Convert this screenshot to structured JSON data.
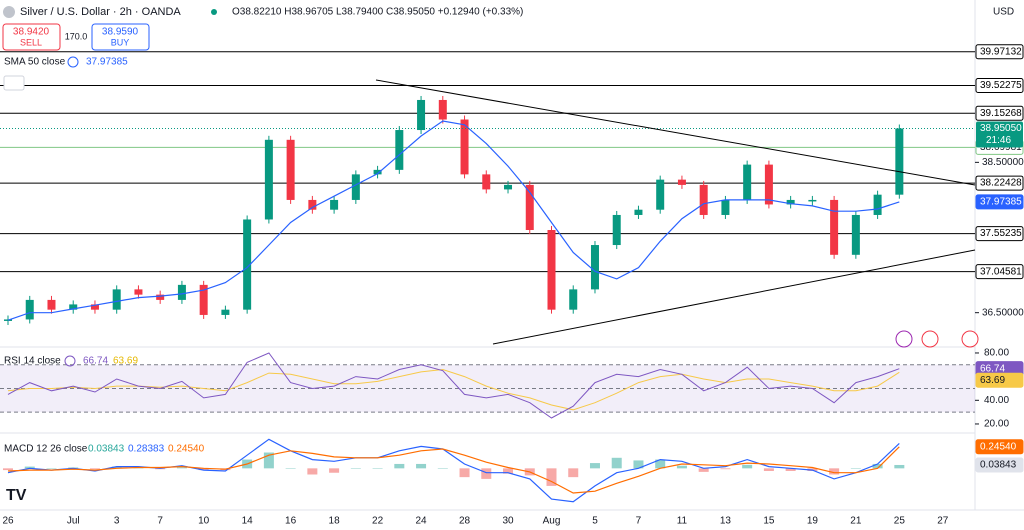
{
  "header": {
    "title": "Silver / U.S. Dollar · 2h · OANDA",
    "ohlc": "O38.82210 H38.96705 L38.79400 C38.95050 +0.12940 (+0.33%)",
    "sell_price": "38.9420",
    "sell": "SELL",
    "spread": "170.0",
    "buy_price": "38.9590",
    "buy": "BUY",
    "currency": "USD"
  },
  "chart_data": [
    {
      "type": "candlestick",
      "legend": "SMA 50 close",
      "categories": [
        "26",
        null,
        null,
        "Jul",
        null,
        "3",
        null,
        "7",
        null,
        "10",
        null,
        "14",
        null,
        "16",
        null,
        "18",
        null,
        "22",
        null,
        "24",
        null,
        "28",
        null,
        "30",
        null,
        "Aug",
        null,
        "5",
        null,
        "7",
        null,
        "11",
        null,
        "13",
        null,
        "15",
        null,
        "19",
        null,
        "21",
        null,
        "25",
        null,
        "27"
      ],
      "series": [
        {
          "name": "Close",
          "color": "#089981",
          "down_color": "#f23645",
          "values": [
            36.41,
            36.67,
            36.54,
            36.61,
            36.54,
            36.81,
            36.74,
            36.67,
            36.87,
            36.47,
            36.54,
            37.74,
            38.8,
            38.0,
            37.87,
            38.0,
            38.34,
            38.4,
            38.93,
            39.33,
            39.07,
            38.34,
            38.14,
            38.2,
            37.6,
            36.54,
            36.81,
            37.4,
            37.8,
            37.87,
            38.27,
            38.2,
            37.8,
            38.0,
            38.47,
            37.94,
            38.0,
            38.0,
            37.27,
            37.8,
            38.07,
            38.9505,
            null,
            null
          ]
        },
        {
          "name": "SMA 50",
          "color": "#2962ff",
          "values": [
            36.4,
            36.5,
            36.5,
            36.55,
            36.6,
            36.65,
            36.7,
            36.72,
            36.75,
            36.8,
            36.9,
            37.1,
            37.4,
            37.7,
            37.9,
            38.05,
            38.2,
            38.35,
            38.6,
            38.85,
            39.05,
            39.0,
            38.75,
            38.45,
            38.1,
            37.7,
            37.3,
            37.05,
            36.95,
            37.1,
            37.45,
            37.75,
            37.95,
            38.0,
            38.0,
            38.0,
            37.95,
            37.92,
            37.85,
            37.85,
            37.88,
            37.97385,
            null,
            null
          ]
        }
      ],
      "ylim": [
        36.07,
        40.66
      ],
      "yticks": [
        {
          "value": 38.5,
          "label": "38.50000"
        },
        {
          "value": 36.5,
          "label": "36.50000"
        }
      ],
      "levels": [
        39.97132,
        39.52275,
        39.15268,
        38.22428,
        37.55235,
        37.04581
      ],
      "highlight_level": 38.69981,
      "last_price": {
        "value": 38.9505,
        "label": "38.95050"
      },
      "countdown": "21:46"
    },
    {
      "type": "line",
      "legend": "RSI 14 close",
      "series": [
        {
          "name": "RSI",
          "color": "#7e57c2",
          "values": [
            45,
            55,
            48,
            52,
            47,
            58,
            52,
            50,
            56,
            42,
            45,
            72,
            80,
            55,
            50,
            52,
            60,
            58,
            66,
            70,
            65,
            45,
            42,
            45,
            38,
            25,
            35,
            55,
            62,
            60,
            66,
            62,
            48,
            55,
            68,
            50,
            52,
            50,
            38,
            55,
            60,
            66.74
          ]
        },
        {
          "name": "RSI MA",
          "color": "#f7c948",
          "values": [
            48,
            50,
            50,
            51,
            50,
            52,
            52,
            51,
            52,
            50,
            48,
            55,
            63,
            62,
            58,
            54,
            54,
            56,
            60,
            64,
            66,
            60,
            52,
            46,
            42,
            36,
            32,
            38,
            46,
            55,
            60,
            62,
            58,
            55,
            58,
            58,
            55,
            52,
            48,
            48,
            52,
            63.69
          ]
        }
      ],
      "ylim": [
        14.9,
        84.2
      ],
      "yticks": [
        {
          "value": 80,
          "label": "80.00"
        },
        {
          "value": 40,
          "label": "40.00"
        },
        {
          "value": 20,
          "label": "20.00"
        }
      ],
      "band": [
        30,
        70
      ],
      "midline": 50
    },
    {
      "type": "macd",
      "legend": "MACD 12 26 close",
      "series": [
        {
          "name": "Histogram",
          "color": "#26a69a",
          "down_color": "#ef5350",
          "values": [
            -0.02,
            0.02,
            0,
            0.01,
            -0.01,
            0.02,
            0.01,
            -0.01,
            0.01,
            -0.02,
            -0.02,
            0.1,
            0.18,
            0,
            -0.07,
            -0.05,
            0,
            0,
            0.05,
            0.05,
            0,
            -0.1,
            -0.12,
            -0.06,
            -0.08,
            -0.2,
            -0.1,
            0.06,
            0.12,
            0.09,
            0.1,
            0.03,
            -0.04,
            -0.01,
            0.04,
            -0.03,
            -0.03,
            -0.03,
            -0.07,
            0,
            0.05,
            0.03843
          ]
        },
        {
          "name": "MACD",
          "color": "#2962ff",
          "values": [
            -0.05,
            0,
            -0.02,
            0,
            -0.03,
            0.02,
            0.02,
            0,
            0.03,
            -0.02,
            -0.03,
            0.15,
            0.33,
            0.2,
            0.1,
            0.08,
            0.12,
            0.12,
            0.2,
            0.25,
            0.22,
            0.05,
            -0.05,
            -0.05,
            -0.12,
            -0.35,
            -0.38,
            -0.2,
            -0.05,
            0,
            0.1,
            0.08,
            0,
            0.02,
            0.1,
            0.02,
            0,
            -0.02,
            -0.12,
            -0.05,
            0.05,
            0.28383
          ]
        },
        {
          "name": "Signal",
          "color": "#ff6d00",
          "last_label": "0.24540",
          "values": [
            -0.03,
            -0.02,
            -0.02,
            -0.01,
            -0.02,
            0,
            0.01,
            0.01,
            0.02,
            0,
            -0.01,
            0.05,
            0.15,
            0.2,
            0.17,
            0.13,
            0.12,
            0.12,
            0.15,
            0.2,
            0.22,
            0.15,
            0.07,
            0.01,
            -0.04,
            -0.15,
            -0.28,
            -0.26,
            -0.17,
            -0.09,
            0,
            0.05,
            0.04,
            0.03,
            0.06,
            0.05,
            0.03,
            0.01,
            -0.05,
            -0.05,
            0,
            0.2454
          ]
        }
      ],
      "ylim": [
        -0.417,
        0.368
      ]
    }
  ]
}
